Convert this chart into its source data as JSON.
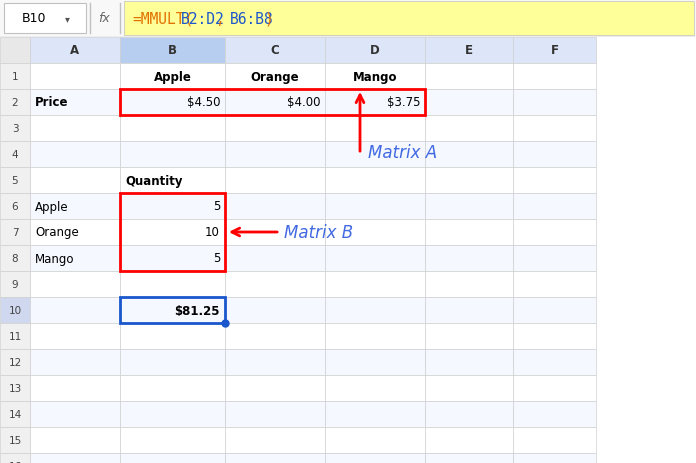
{
  "formula_bar_cell": "B10",
  "formula_parts": [
    {
      "text": "=MMULT(",
      "color": "#e07000"
    },
    {
      "text": "B2:D2",
      "color": "#1a56cc"
    },
    {
      "text": ", ",
      "color": "#e07000"
    },
    {
      "text": "B6:B8",
      "color": "#1a56cc"
    },
    {
      "text": ")",
      "color": "#e07000"
    }
  ],
  "col_header_bg": "#dce6f8",
  "col_header_selected_bg": "#b8cef0",
  "row_header_bg": "#f0f0f0",
  "row_header_selected_bg": "#d0d8f0",
  "grid_color": "#d0d0d0",
  "cell_bg_odd": "#ffffff",
  "cell_bg_even": "#f5f8ff",
  "col_labels": [
    "",
    "A",
    "B",
    "C",
    "D",
    "E",
    "F"
  ],
  "selected_col_idx": 2,
  "selected_row": 10,
  "n_data_rows": 16,
  "cell_data": {
    "B1": {
      "text": "Apple",
      "bold": true,
      "align": "center"
    },
    "C1": {
      "text": "Orange",
      "bold": true,
      "align": "center"
    },
    "D1": {
      "text": "Mango",
      "bold": true,
      "align": "center"
    },
    "A2": {
      "text": "Price",
      "bold": true,
      "align": "left"
    },
    "B2": {
      "text": "$4.50",
      "bold": false,
      "align": "right"
    },
    "C2": {
      "text": "$4.00",
      "bold": false,
      "align": "right"
    },
    "D2": {
      "text": "$3.75",
      "bold": false,
      "align": "right"
    },
    "B5": {
      "text": "Quantity",
      "bold": true,
      "align": "left"
    },
    "A6": {
      "text": "Apple",
      "bold": false,
      "align": "left"
    },
    "B6": {
      "text": "5",
      "bold": false,
      "align": "right"
    },
    "A7": {
      "text": "Orange",
      "bold": false,
      "align": "left"
    },
    "B7": {
      "text": "10",
      "bold": false,
      "align": "right"
    },
    "A8": {
      "text": "Mango",
      "bold": false,
      "align": "left"
    },
    "B8": {
      "text": "5",
      "bold": false,
      "align": "right"
    },
    "B10": {
      "text": "$81.25",
      "bold": true,
      "align": "right"
    }
  },
  "matrix_a_color": "red",
  "matrix_b_color": "red",
  "result_color": "#1a56cc",
  "label_color": "#4169e1",
  "matrix_a_text": "Matrix A",
  "matrix_b_text": "Matrix B"
}
